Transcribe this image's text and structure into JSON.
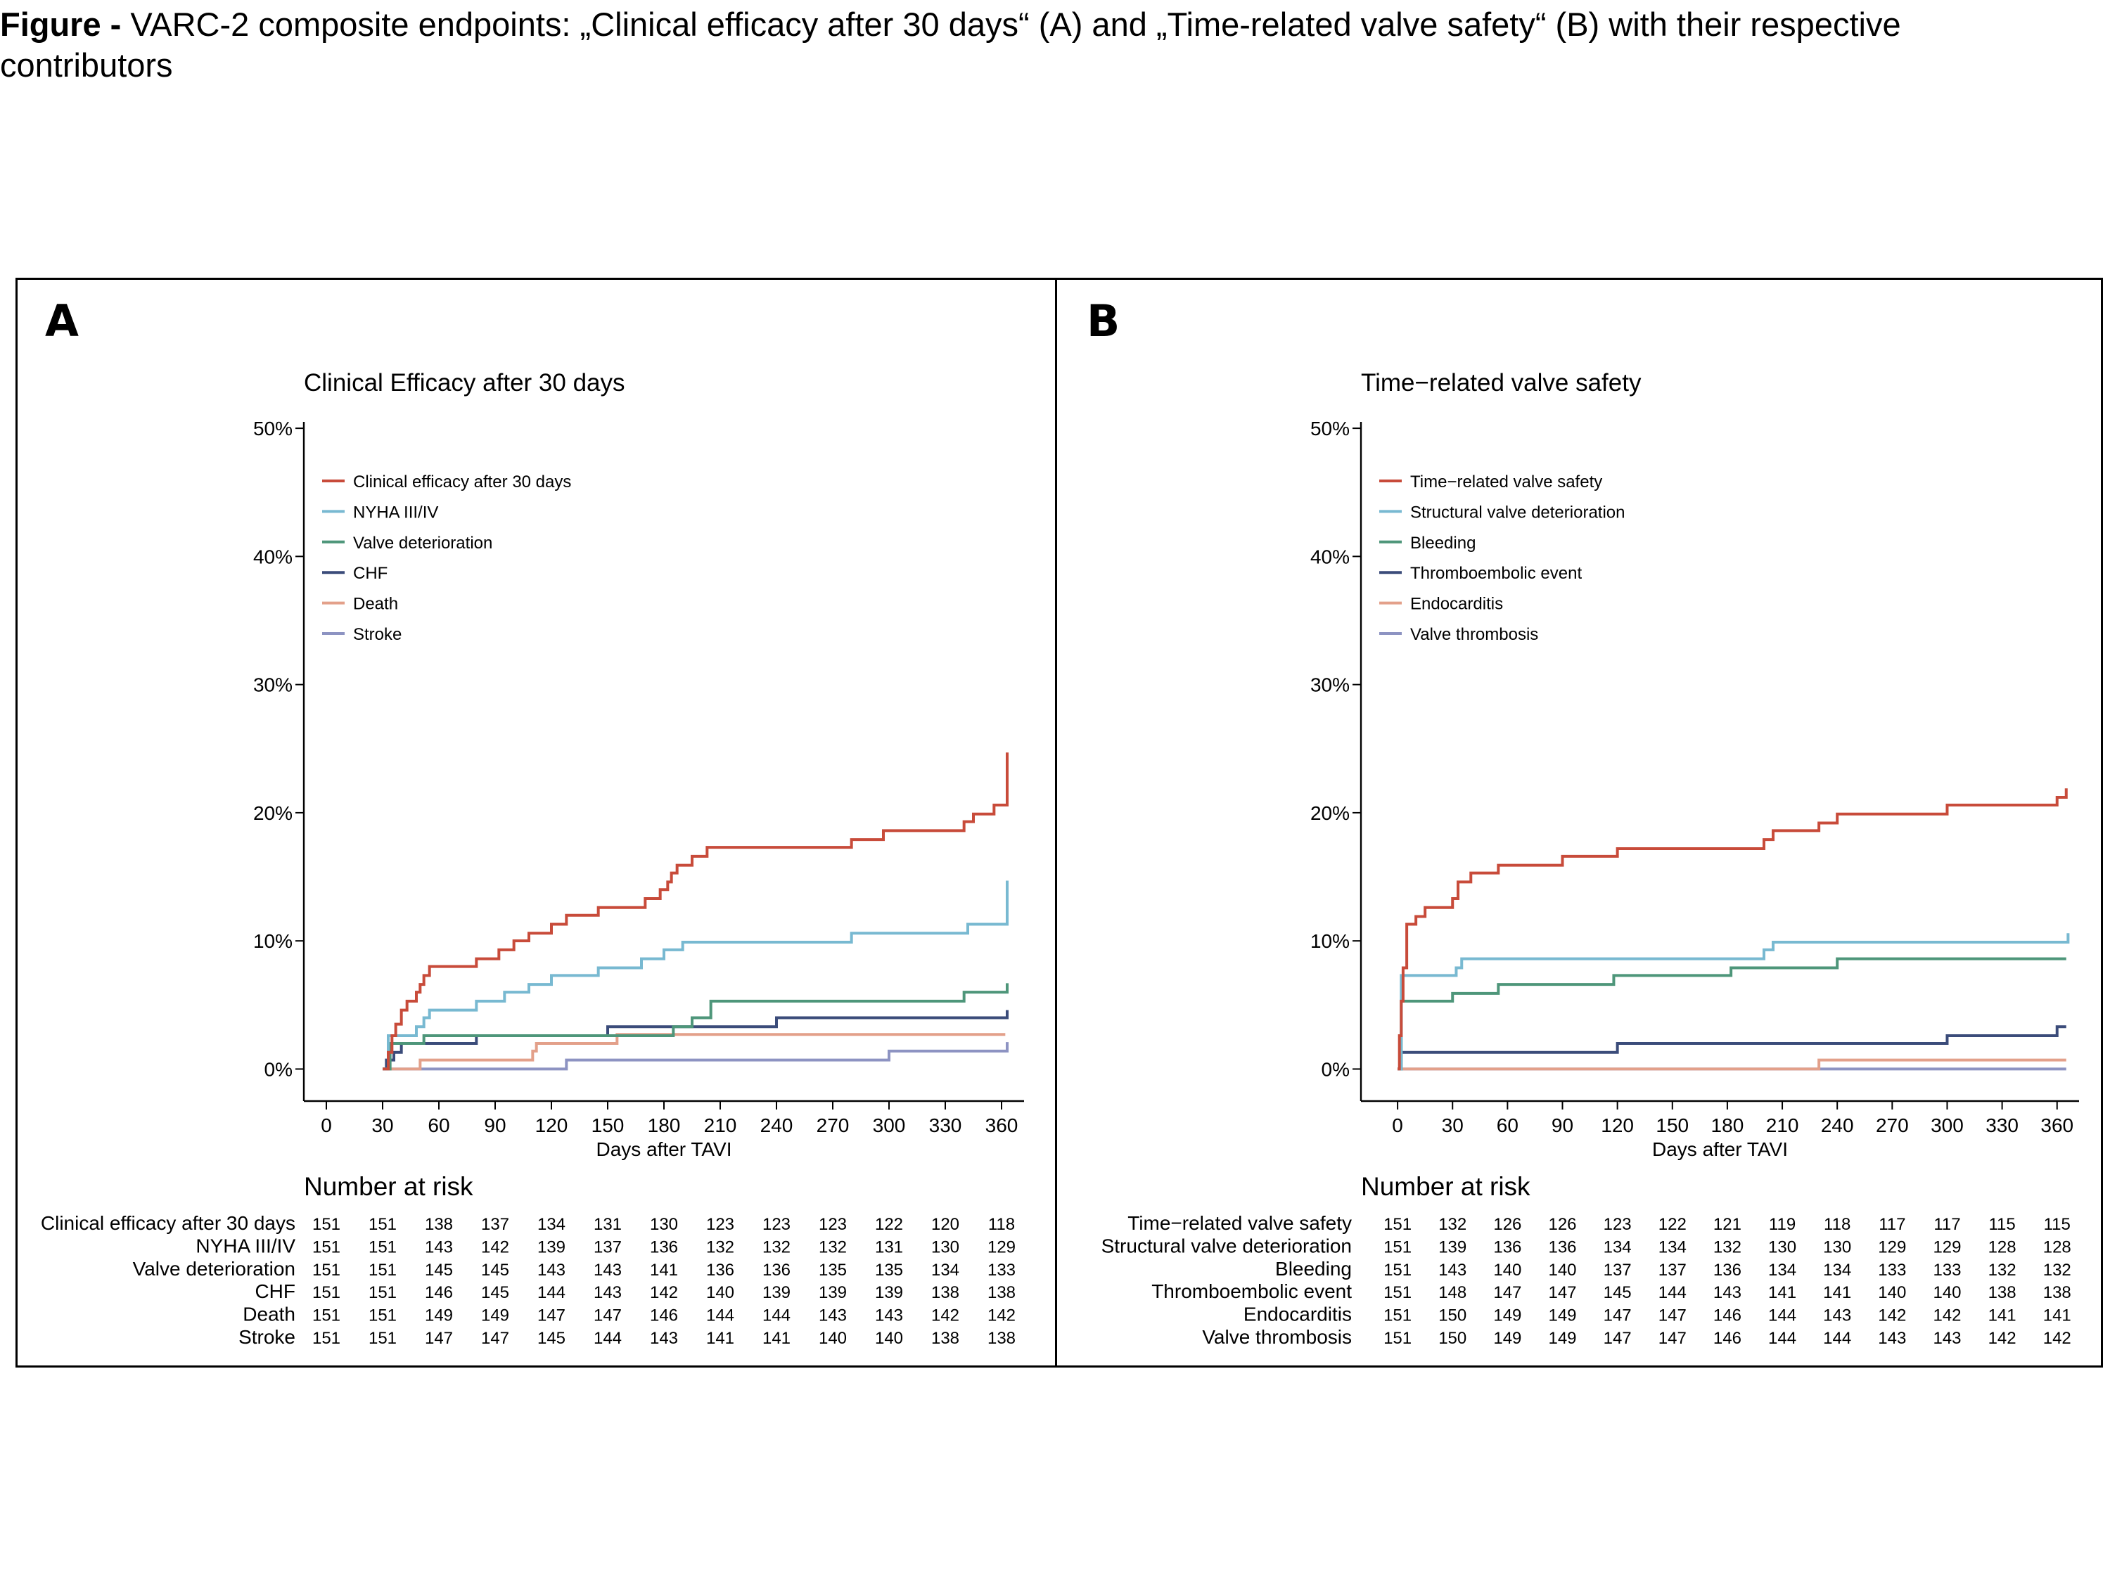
{
  "caption": {
    "bold": "Figure -",
    "text": " VARC-2 composite endpoints: „Clinical efficacy after 30 days“ (A) and „Time-related valve safety“ (B) with their respective contributors"
  },
  "panels": [
    {
      "letter": "A",
      "risk_title": "Number at risk",
      "chart_data": {
        "type": "line",
        "title": "Clinical Efficacy after 30 days",
        "xlabel": "Days after TAVI",
        "ylabel": "",
        "xlim": [
          -12,
          372
        ],
        "ylim": [
          -2.5,
          50.5
        ],
        "x_ticks": [
          0,
          30,
          60,
          90,
          120,
          150,
          180,
          210,
          240,
          270,
          300,
          330,
          360
        ],
        "y_ticks": [
          0,
          10,
          20,
          30,
          40,
          50
        ],
        "y_tick_labels": [
          "0%",
          "10%",
          "20%",
          "30%",
          "40%",
          "50%"
        ],
        "grid": false,
        "legend_position": "top-left",
        "step": true,
        "series": [
          {
            "name": "Clinical efficacy after 30 days",
            "color": "#c84b3a",
            "x": [
              30,
              33,
              35,
              37,
              40,
              43,
              46,
              48,
              50,
              52,
              55,
              80,
              92,
              100,
              108,
              120,
              128,
              145,
              170,
              178,
              182,
              184,
              187,
              190,
              195,
              203,
              208,
              280,
              297,
              340,
              345,
              356,
              362,
              363
            ],
            "y": [
              0,
              1.3,
              2.6,
              3.5,
              4.6,
              5.3,
              5.3,
              6.0,
              6.6,
              7.3,
              8.0,
              8.6,
              9.3,
              10.0,
              10.6,
              11.3,
              12.0,
              12.6,
              13.3,
              14.0,
              14.6,
              15.3,
              15.9,
              15.9,
              16.6,
              17.3,
              17.3,
              17.9,
              18.6,
              19.3,
              19.9,
              20.6,
              20.6,
              24.7
            ]
          },
          {
            "name": "NYHA III/IV",
            "color": "#78b9d1",
            "x": [
              30,
              33,
              48,
              52,
              55,
              80,
              95,
              108,
              120,
              145,
              168,
              180,
              190,
              280,
              342,
              362,
              363
            ],
            "y": [
              0,
              2.6,
              3.3,
              4.0,
              4.6,
              5.3,
              6.0,
              6.6,
              7.3,
              7.9,
              8.6,
              9.3,
              9.9,
              10.6,
              11.3,
              11.3,
              14.7
            ]
          },
          {
            "name": "Valve deterioration",
            "color": "#4e967a",
            "x": [
              30,
              34,
              52,
              185,
              195,
              205,
              340,
              362,
              363
            ],
            "y": [
              0,
              2.0,
              2.6,
              3.3,
              4.0,
              5.3,
              6.0,
              6.0,
              6.7
            ]
          },
          {
            "name": "CHF",
            "color": "#3b4c7a",
            "x": [
              30,
              32,
              36,
              40,
              80,
              150,
              210,
              240,
              362,
              363
            ],
            "y": [
              0,
              0.7,
              1.3,
              2.0,
              2.6,
              3.3,
              3.3,
              4.0,
              4.0,
              4.6
            ]
          },
          {
            "name": "Death",
            "color": "#e3a08a",
            "x": [
              30,
              50,
              110,
              112,
              155,
              362
            ],
            "y": [
              0,
              0.7,
              1.4,
              2.0,
              2.7,
              2.7
            ]
          },
          {
            "name": "Stroke",
            "color": "#8d93c2",
            "x": [
              30,
              128,
              300,
              360,
              363
            ],
            "y": [
              0,
              0.7,
              1.4,
              1.4,
              2.1
            ]
          }
        ],
        "risk_times": [
          0,
          30,
          60,
          90,
          120,
          150,
          180,
          210,
          240,
          270,
          300,
          330,
          360
        ],
        "risk_table": [
          {
            "name": "Clinical efficacy after 30 days",
            "values": [
              151,
              151,
              138,
              137,
              134,
              131,
              130,
              123,
              123,
              123,
              122,
              120,
              118
            ]
          },
          {
            "name": "NYHA III/IV",
            "values": [
              151,
              151,
              143,
              142,
              139,
              137,
              136,
              132,
              132,
              132,
              131,
              130,
              129
            ]
          },
          {
            "name": "Valve deterioration",
            "values": [
              151,
              151,
              145,
              145,
              143,
              143,
              141,
              136,
              136,
              135,
              135,
              134,
              133
            ]
          },
          {
            "name": "CHF",
            "values": [
              151,
              151,
              146,
              145,
              144,
              143,
              142,
              140,
              139,
              139,
              139,
              138,
              138
            ]
          },
          {
            "name": "Death",
            "values": [
              151,
              151,
              149,
              149,
              147,
              147,
              146,
              144,
              144,
              143,
              143,
              142,
              142
            ]
          },
          {
            "name": "Stroke",
            "values": [
              151,
              151,
              147,
              147,
              145,
              144,
              143,
              141,
              141,
              140,
              140,
              138,
              138
            ]
          }
        ]
      }
    },
    {
      "letter": "B",
      "risk_title": "Number at risk",
      "chart_data": {
        "type": "line",
        "title": "Time−related valve safety",
        "xlabel": "Days after TAVI",
        "ylabel": "",
        "xlim": [
          -20,
          372
        ],
        "ylim": [
          -2.5,
          50.5
        ],
        "x_ticks": [
          0,
          30,
          60,
          90,
          120,
          150,
          180,
          210,
          240,
          270,
          300,
          330,
          360
        ],
        "y_ticks": [
          0,
          10,
          20,
          30,
          40,
          50
        ],
        "y_tick_labels": [
          "0%",
          "10%",
          "20%",
          "30%",
          "40%",
          "50%"
        ],
        "grid": false,
        "legend_position": "top-left",
        "step": true,
        "series": [
          {
            "name": "Time−related valve safety",
            "color": "#c84b3a",
            "x": [
              0,
              1,
              2,
              3,
              5,
              10,
              15,
              30,
              33,
              35,
              40,
              45,
              55,
              90,
              120,
              145,
              200,
              203,
              205,
              230,
              240,
              300,
              360,
              363,
              365
            ],
            "y": [
              0,
              2.6,
              5.3,
              7.9,
              11.3,
              11.9,
              12.6,
              13.3,
              14.6,
              14.6,
              15.3,
              15.3,
              15.9,
              16.6,
              17.2,
              17.2,
              17.9,
              17.9,
              18.6,
              19.2,
              19.9,
              20.6,
              21.2,
              21.2,
              21.9
            ]
          },
          {
            "name": "Structural valve deterioration",
            "color": "#78b9d1",
            "x": [
              0,
              2,
              32,
              35,
              200,
              205,
              365,
              366
            ],
            "y": [
              0,
              7.3,
              7.9,
              8.6,
              9.3,
              9.9,
              9.9,
              10.6
            ]
          },
          {
            "name": "Bleeding",
            "color": "#4e967a",
            "x": [
              0,
              2,
              30,
              50,
              55,
              90,
              118,
              182,
              240,
              365
            ],
            "y": [
              0,
              5.3,
              5.9,
              5.9,
              6.6,
              6.6,
              7.3,
              7.9,
              8.6,
              8.6
            ]
          },
          {
            "name": "Thromboembolic event",
            "color": "#3b4c7a",
            "x": [
              0,
              2,
              120,
              300,
              360,
              365
            ],
            "y": [
              0,
              1.3,
              2.0,
              2.6,
              3.3,
              3.3
            ]
          },
          {
            "name": "Endocarditis",
            "color": "#e3a08a",
            "x": [
              0,
              230,
              365
            ],
            "y": [
              0,
              0.7,
              0.7
            ]
          },
          {
            "name": "Valve thrombosis",
            "color": "#8d93c2",
            "x": [
              0,
              365
            ],
            "y": [
              0,
              0
            ]
          }
        ],
        "risk_times": [
          0,
          30,
          60,
          90,
          120,
          150,
          180,
          210,
          240,
          270,
          300,
          330,
          360
        ],
        "risk_table": [
          {
            "name": "Time−related valve safety",
            "values": [
              151,
              132,
              126,
              126,
              123,
              122,
              121,
              119,
              118,
              117,
              117,
              115,
              115
            ]
          },
          {
            "name": "Structural valve deterioration",
            "values": [
              151,
              139,
              136,
              136,
              134,
              134,
              132,
              130,
              130,
              129,
              129,
              128,
              128
            ]
          },
          {
            "name": "Bleeding",
            "values": [
              151,
              143,
              140,
              140,
              137,
              137,
              136,
              134,
              134,
              133,
              133,
              132,
              132
            ]
          },
          {
            "name": "Thromboembolic event",
            "values": [
              151,
              148,
              147,
              147,
              145,
              144,
              143,
              141,
              141,
              140,
              140,
              138,
              138
            ]
          },
          {
            "name": "Endocarditis",
            "values": [
              151,
              150,
              149,
              149,
              147,
              147,
              146,
              144,
              143,
              142,
              142,
              141,
              141
            ]
          },
          {
            "name": "Valve thrombosis",
            "values": [
              151,
              150,
              149,
              149,
              147,
              147,
              146,
              144,
              144,
              143,
              143,
              142,
              142
            ]
          }
        ]
      }
    }
  ]
}
